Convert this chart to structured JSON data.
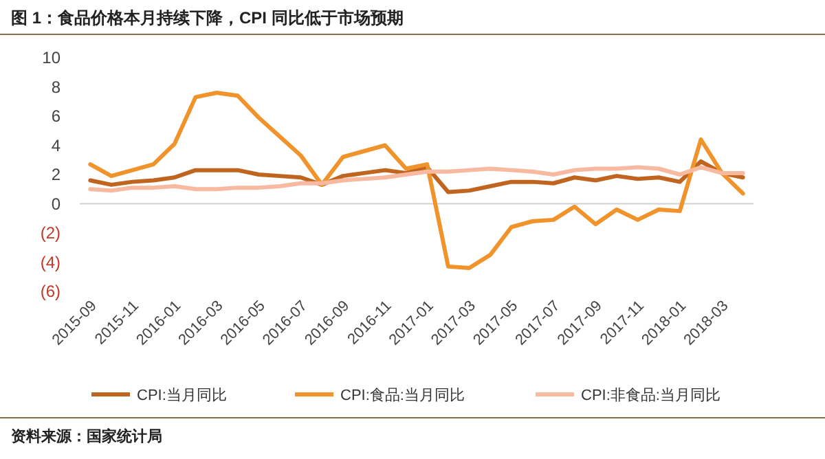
{
  "chart_data": {
    "type": "line",
    "title": "图 1：食品价格本月持续下降，CPI 同比低于市场预期",
    "categories": [
      "2015-09",
      null,
      "2015-11",
      null,
      "2016-01",
      null,
      "2016-03",
      null,
      "2016-05",
      null,
      "2016-07",
      null,
      "2016-09",
      null,
      "2016-11",
      null,
      "2017-01",
      null,
      "2017-03",
      null,
      "2017-05",
      null,
      "2017-07",
      null,
      "2017-09",
      null,
      "2017-11",
      null,
      "2018-01",
      null,
      "2018-03",
      null
    ],
    "series": [
      {
        "name": "CPI:当月同比",
        "color": "#c0651f",
        "values": [
          1.6,
          1.3,
          1.5,
          1.6,
          1.8,
          2.3,
          2.3,
          2.3,
          2.0,
          1.9,
          1.8,
          1.3,
          1.9,
          2.1,
          2.3,
          2.1,
          2.5,
          0.8,
          0.9,
          1.2,
          1.5,
          1.5,
          1.4,
          1.8,
          1.6,
          1.9,
          1.7,
          1.8,
          1.5,
          2.9,
          2.1,
          1.8
        ]
      },
      {
        "name": "CPI:食品:当月同比",
        "color": "#f0932b",
        "values": [
          2.7,
          1.9,
          2.3,
          2.7,
          4.1,
          7.3,
          7.6,
          7.4,
          5.9,
          4.6,
          3.3,
          1.3,
          3.2,
          3.6,
          4.0,
          2.4,
          2.7,
          -4.3,
          -4.4,
          -3.5,
          -1.6,
          -1.2,
          -1.1,
          -0.2,
          -1.4,
          -0.4,
          -1.1,
          -0.4,
          -0.5,
          4.4,
          2.1,
          0.7
        ]
      },
      {
        "name": "CPI:非食品:当月同比",
        "color": "#f7b9a0",
        "values": [
          1.0,
          0.9,
          1.1,
          1.1,
          1.2,
          1.0,
          1.0,
          1.1,
          1.1,
          1.2,
          1.4,
          1.4,
          1.6,
          1.7,
          1.8,
          2.0,
          2.2,
          2.2,
          2.3,
          2.4,
          2.3,
          2.2,
          2.0,
          2.3,
          2.4,
          2.4,
          2.5,
          2.4,
          2.0,
          2.5,
          2.1,
          2.1
        ]
      }
    ],
    "ylim": [
      -6,
      10
    ],
    "yticks": [
      10,
      8,
      6,
      4,
      2,
      0,
      {
        "value": -2,
        "label": "(2)"
      },
      {
        "value": -4,
        "label": "(4)"
      },
      {
        "value": -6,
        "label": "(6)"
      }
    ],
    "ref_lines": [
      {
        "axis": "y",
        "value": 0,
        "color": "#d0d0d0"
      }
    ],
    "legend": "bottom",
    "annotations": [
      "资料来源：国家统计局"
    ]
  }
}
